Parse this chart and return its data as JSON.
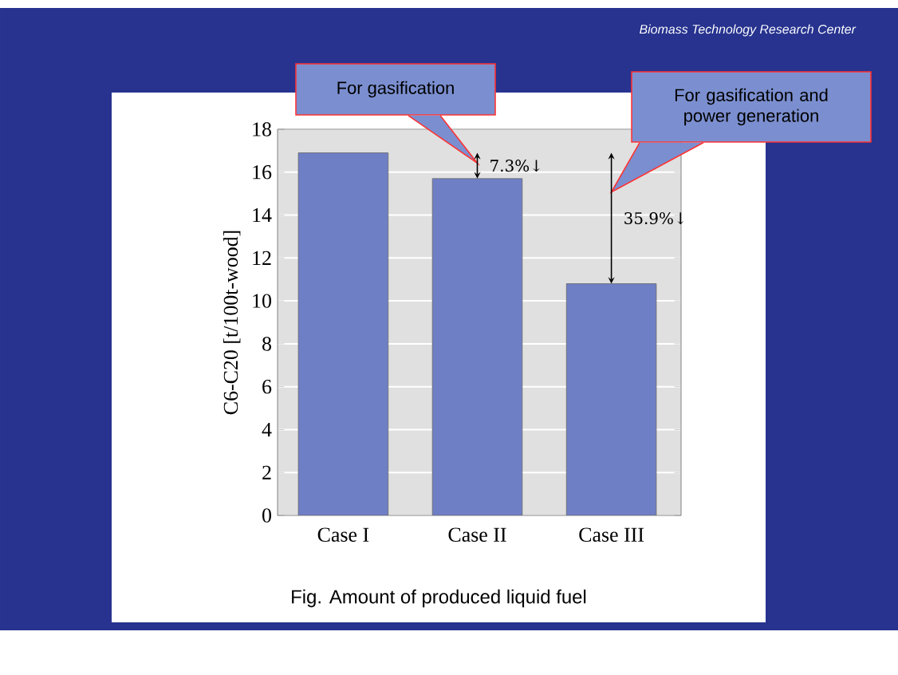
{
  "chart_data": {
    "type": "bar",
    "title": "Fig.  Amount of produced liquid fuel",
    "ylabel": "C6-C20 [t/100t-wood]",
    "categories": [
      "Case I",
      "Case II",
      "Case III"
    ],
    "values": [
      16.9,
      15.7,
      10.8
    ],
    "color": "#6f7fc6",
    "ylim": [
      0,
      18
    ],
    "yticks": [
      0,
      2,
      4,
      6,
      8,
      10,
      12,
      14,
      16,
      18
    ],
    "grid": "y",
    "annotations": [
      "For gasification",
      "For gasification and power generation",
      "7.3%↓",
      "35.9%↓",
      "Biomass Technology Research Center"
    ]
  }
}
